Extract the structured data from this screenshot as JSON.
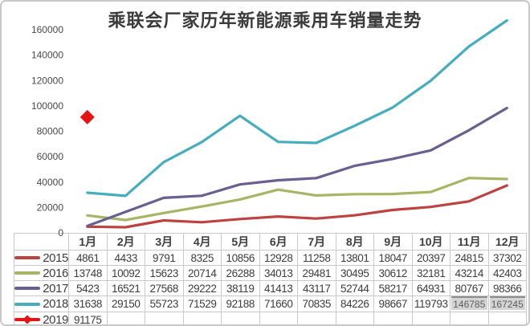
{
  "title": "乘联会厂家历年新能源乘用车销量走势",
  "chart_data": {
    "type": "line",
    "title": "乘联会厂家历年新能源乘用车销量走势",
    "categories": [
      "1月",
      "2月",
      "3月",
      "4月",
      "5月",
      "6月",
      "7月",
      "8月",
      "9月",
      "10月",
      "11月",
      "12月"
    ],
    "ylim": [
      0,
      160000
    ],
    "ytick_step": 20000,
    "ytick_labels": [
      "0",
      "20000",
      "40000",
      "60000",
      "80000",
      "100000",
      "120000",
      "140000",
      "160000"
    ],
    "grid": false,
    "legend_position": "table-left",
    "series": [
      {
        "name": "2015",
        "color": "#bd4340",
        "marker": "none",
        "values": [
          4861,
          4433,
          9791,
          8325,
          10856,
          12928,
          11258,
          13801,
          18047,
          20397,
          24815,
          37302
        ]
      },
      {
        "name": "2016",
        "color": "#a8b566",
        "marker": "none",
        "values": [
          13748,
          10092,
          15623,
          20714,
          26288,
          34013,
          29481,
          30495,
          30612,
          32181,
          43214,
          42403
        ]
      },
      {
        "name": "2017",
        "color": "#6a5f91",
        "marker": "none",
        "values": [
          5423,
          16521,
          27568,
          29222,
          38119,
          41413,
          43117,
          52744,
          58217,
          64931,
          80767,
          98366
        ]
      },
      {
        "name": "2018",
        "color": "#46adbe",
        "marker": "none",
        "values": [
          31638,
          29150,
          55723,
          71529,
          92188,
          71660,
          70835,
          84226,
          98667,
          119793,
          146785,
          167245
        ],
        "edited_month_indexes": [
          10,
          11
        ]
      },
      {
        "name": "2019",
        "color": "#e51311",
        "marker": "diamond",
        "values": [
          91175,
          null,
          null,
          null,
          null,
          null,
          null,
          null,
          null,
          null,
          null,
          null
        ]
      }
    ]
  }
}
